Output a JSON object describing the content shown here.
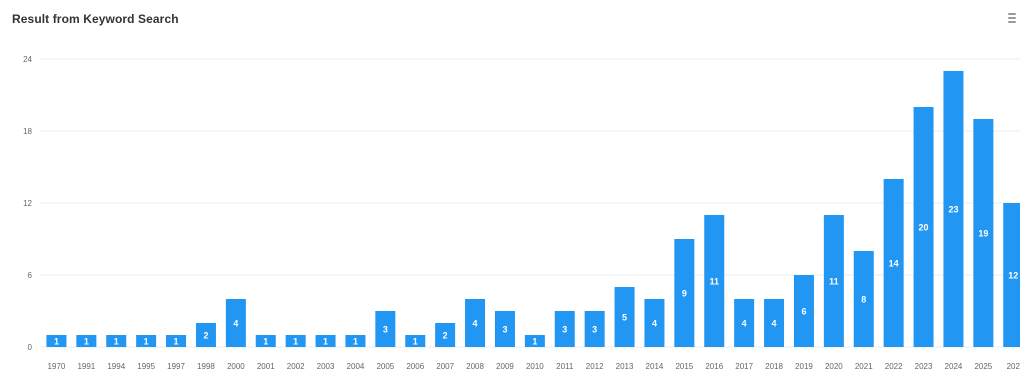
{
  "header": {
    "title": "Result from Keyword Search",
    "menu_icon": "hamburger-menu-icon"
  },
  "colors": {
    "bar": "#2196F3",
    "grid": "#ececec",
    "bar_label": "#ffffff",
    "tick": "#666666"
  },
  "chart_data": {
    "type": "bar",
    "title": "Result from Keyword Search",
    "xlabel": "",
    "ylabel": "",
    "ylim": [
      0,
      24
    ],
    "yticks": [
      0,
      6,
      12,
      18,
      24
    ],
    "grid": true,
    "legend": "none",
    "categories": [
      "1970",
      "1991",
      "1994",
      "1995",
      "1997",
      "1998",
      "2000",
      "2001",
      "2002",
      "2003",
      "2004",
      "2005",
      "2006",
      "2007",
      "2008",
      "2009",
      "2010",
      "2011",
      "2012",
      "2013",
      "2014",
      "2015",
      "2016",
      "2017",
      "2018",
      "2019",
      "2020",
      "2021",
      "2022",
      "2023",
      "2024",
      "2025",
      "202"
    ],
    "values": [
      1,
      1,
      1,
      1,
      1,
      2,
      4,
      1,
      1,
      1,
      1,
      3,
      1,
      2,
      4,
      3,
      1,
      3,
      3,
      5,
      4,
      9,
      11,
      4,
      4,
      6,
      11,
      8,
      14,
      20,
      23,
      19,
      12
    ]
  }
}
